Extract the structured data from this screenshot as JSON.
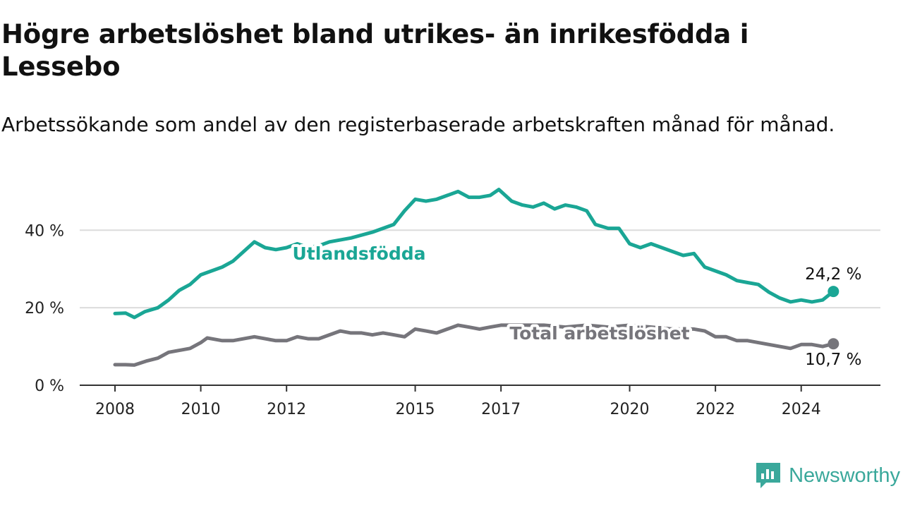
{
  "header": {
    "title": "Högre arbetslöshet bland utrikes- än inrikesfödda i Lessebo",
    "subtitle": "Arbetssökande som andel av den registerbaserade arbetskraften månad för månad."
  },
  "brand": {
    "name": "Newsworthy",
    "icon": "newsworthy-logo-icon",
    "color": "#3aa89b"
  },
  "chart_data": {
    "type": "line",
    "title": "Högre arbetslöshet bland utrikes- än inrikesfödda i Lessebo",
    "subtitle": "Arbetssökande som andel av den registerbaserade arbetskraften månad för månad.",
    "xlim": [
      2008,
      2025
    ],
    "ylim": [
      0,
      52
    ],
    "x_ticks": [
      2008,
      2010,
      2012,
      2015,
      2017,
      2020,
      2022,
      2024
    ],
    "y_ticks": [
      0,
      20,
      40
    ],
    "y_tick_labels": [
      "0 %",
      "20 %",
      "40 %"
    ],
    "grid": true,
    "legend": "inline labels",
    "series": [
      {
        "name": "Utlandsfödda",
        "color": "#1aa695",
        "end_label": "24,2 %",
        "points": [
          [
            2008.0,
            18.5
          ],
          [
            2008.25,
            18.6
          ],
          [
            2008.45,
            17.5
          ],
          [
            2008.7,
            19.0
          ],
          [
            2009.0,
            20.0
          ],
          [
            2009.25,
            22.0
          ],
          [
            2009.5,
            24.5
          ],
          [
            2009.75,
            26.0
          ],
          [
            2010.0,
            28.5
          ],
          [
            2010.25,
            29.5
          ],
          [
            2010.5,
            30.5
          ],
          [
            2010.75,
            32.0
          ],
          [
            2011.0,
            34.5
          ],
          [
            2011.25,
            37.0
          ],
          [
            2011.5,
            35.5
          ],
          [
            2011.75,
            35.0
          ],
          [
            2012.0,
            35.5
          ],
          [
            2012.25,
            36.5
          ],
          [
            2012.5,
            35.5
          ],
          [
            2012.75,
            36.0
          ],
          [
            2013.0,
            37.0
          ],
          [
            2013.5,
            38.0
          ],
          [
            2014.0,
            39.5
          ],
          [
            2014.5,
            41.5
          ],
          [
            2014.75,
            45.0
          ],
          [
            2015.0,
            48.0
          ],
          [
            2015.25,
            47.5
          ],
          [
            2015.5,
            48.0
          ],
          [
            2015.75,
            49.0
          ],
          [
            2016.0,
            50.0
          ],
          [
            2016.25,
            48.5
          ],
          [
            2016.5,
            48.5
          ],
          [
            2016.75,
            49.0
          ],
          [
            2016.95,
            50.5
          ],
          [
            2017.25,
            47.5
          ],
          [
            2017.5,
            46.5
          ],
          [
            2017.75,
            46.0
          ],
          [
            2018.0,
            47.0
          ],
          [
            2018.25,
            45.5
          ],
          [
            2018.5,
            46.5
          ],
          [
            2018.75,
            46.0
          ],
          [
            2019.0,
            45.0
          ],
          [
            2019.2,
            41.5
          ],
          [
            2019.5,
            40.5
          ],
          [
            2019.75,
            40.5
          ],
          [
            2020.0,
            36.5
          ],
          [
            2020.25,
            35.5
          ],
          [
            2020.5,
            36.5
          ],
          [
            2020.75,
            35.5
          ],
          [
            2021.0,
            34.5
          ],
          [
            2021.25,
            33.5
          ],
          [
            2021.5,
            34.0
          ],
          [
            2021.75,
            30.5
          ],
          [
            2022.0,
            29.5
          ],
          [
            2022.25,
            28.5
          ],
          [
            2022.5,
            27.0
          ],
          [
            2022.75,
            26.5
          ],
          [
            2023.0,
            26.0
          ],
          [
            2023.25,
            24.0
          ],
          [
            2023.5,
            22.5
          ],
          [
            2023.75,
            21.5
          ],
          [
            2024.0,
            22.0
          ],
          [
            2024.25,
            21.5
          ],
          [
            2024.5,
            22.0
          ],
          [
            2024.75,
            24.2
          ]
        ]
      },
      {
        "name": "Total arbetslöshet",
        "color": "#76757b",
        "end_label": "10,7 %",
        "points": [
          [
            2008.0,
            5.3
          ],
          [
            2008.25,
            5.3
          ],
          [
            2008.45,
            5.2
          ],
          [
            2008.75,
            6.3
          ],
          [
            2009.0,
            7.0
          ],
          [
            2009.25,
            8.5
          ],
          [
            2009.5,
            9.0
          ],
          [
            2009.75,
            9.5
          ],
          [
            2010.0,
            11.0
          ],
          [
            2010.15,
            12.2
          ],
          [
            2010.25,
            12.0
          ],
          [
            2010.5,
            11.5
          ],
          [
            2010.75,
            11.5
          ],
          [
            2011.0,
            12.0
          ],
          [
            2011.25,
            12.5
          ],
          [
            2011.5,
            12.0
          ],
          [
            2011.75,
            11.5
          ],
          [
            2012.0,
            11.5
          ],
          [
            2012.25,
            12.5
          ],
          [
            2012.5,
            12.0
          ],
          [
            2012.75,
            12.0
          ],
          [
            2013.0,
            13.0
          ],
          [
            2013.25,
            14.0
          ],
          [
            2013.5,
            13.5
          ],
          [
            2013.75,
            13.5
          ],
          [
            2014.0,
            13.0
          ],
          [
            2014.25,
            13.5
          ],
          [
            2014.5,
            13.0
          ],
          [
            2014.75,
            12.5
          ],
          [
            2015.0,
            14.5
          ],
          [
            2015.25,
            14.0
          ],
          [
            2015.5,
            13.5
          ],
          [
            2015.75,
            14.5
          ],
          [
            2016.0,
            15.5
          ],
          [
            2016.25,
            15.0
          ],
          [
            2016.5,
            14.5
          ],
          [
            2016.75,
            15.0
          ],
          [
            2017.0,
            15.5
          ],
          [
            2017.5,
            15.5
          ],
          [
            2018.0,
            15.5
          ],
          [
            2018.5,
            15.0
          ],
          [
            2019.0,
            15.5
          ],
          [
            2019.5,
            15.0
          ],
          [
            2020.0,
            15.5
          ],
          [
            2020.5,
            15.0
          ],
          [
            2021.0,
            14.5
          ],
          [
            2021.5,
            14.5
          ],
          [
            2021.75,
            14.0
          ],
          [
            2022.0,
            12.5
          ],
          [
            2022.25,
            12.5
          ],
          [
            2022.5,
            11.5
          ],
          [
            2022.75,
            11.5
          ],
          [
            2023.0,
            11.0
          ],
          [
            2023.25,
            10.5
          ],
          [
            2023.5,
            10.0
          ],
          [
            2023.75,
            9.5
          ],
          [
            2024.0,
            10.5
          ],
          [
            2024.25,
            10.5
          ],
          [
            2024.5,
            10.0
          ],
          [
            2024.75,
            10.7
          ]
        ]
      }
    ]
  }
}
